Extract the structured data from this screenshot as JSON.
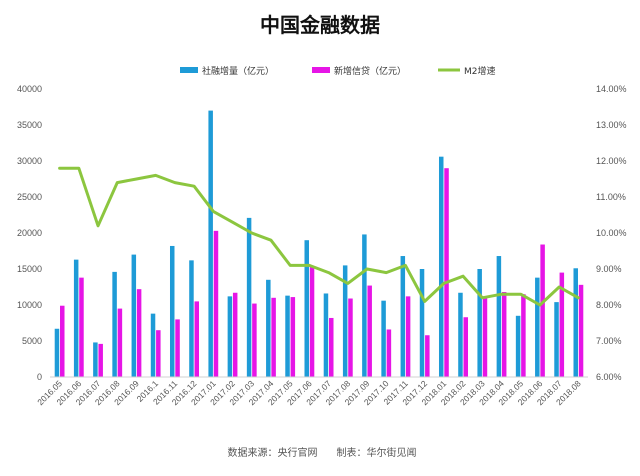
{
  "chart_data": {
    "type": "bar",
    "title": "中国金融数据",
    "source_note": "数据来源：央行官网      制表：华尔街见闻",
    "categories": [
      "2016.05",
      "2016.06",
      "2016.07",
      "2016.08",
      "2016.09",
      "2016.1",
      "2016.11",
      "2016.12",
      "2017.01",
      "2017.02",
      "2017.03",
      "2017.04",
      "2017.05",
      "2017.06",
      "2017.07",
      "2017.08",
      "2017.09",
      "2017.10",
      "2017.11",
      "2017.12",
      "2018.01",
      "2018.02",
      "2018.03",
      "2018.04",
      "2018.05",
      "2018.06",
      "2018.07",
      "2018.08"
    ],
    "y_left": {
      "min": 0,
      "max": 40000,
      "step": 5000,
      "ticks": [
        "0",
        "5000",
        "10000",
        "15000",
        "20000",
        "25000",
        "30000",
        "35000",
        "40000"
      ]
    },
    "y_right": {
      "min": 6,
      "max": 14,
      "step": 1,
      "ticks": [
        "6.00%",
        "7.00%",
        "8.00%",
        "9.00%",
        "10.00%",
        "11.00%",
        "12.00%",
        "13.00%",
        "14.00%"
      ]
    },
    "series": [
      {
        "name": "社融增量（亿元）",
        "kind": "bar",
        "axis": "left",
        "color": "#1e9bd7",
        "values": [
          6700,
          16300,
          4800,
          14600,
          17000,
          8800,
          18200,
          16200,
          37000,
          11200,
          22100,
          13500,
          11300,
          19000,
          11600,
          15500,
          19800,
          10600,
          16800,
          15000,
          30600,
          11700,
          15000,
          16800,
          8500,
          13800,
          10400,
          15100
        ]
      },
      {
        "name": "新增信贷（亿元）",
        "kind": "bar",
        "axis": "left",
        "color": "#e615e6",
        "values": [
          9900,
          13800,
          4600,
          9500,
          12200,
          6500,
          8000,
          10500,
          20300,
          11700,
          10200,
          11000,
          11100,
          15400,
          8200,
          10900,
          12700,
          6600,
          11200,
          5800,
          29000,
          8300,
          11200,
          11800,
          11500,
          18400,
          14500,
          12800
        ]
      },
      {
        "name": "M2增速",
        "kind": "line",
        "axis": "right",
        "color": "#8cc63f",
        "values": [
          11.8,
          11.8,
          10.2,
          11.4,
          11.5,
          11.6,
          11.4,
          11.3,
          10.6,
          10.3,
          10.0,
          9.8,
          9.1,
          9.1,
          8.9,
          8.6,
          9.0,
          8.9,
          9.1,
          8.1,
          8.6,
          8.8,
          8.2,
          8.3,
          8.3,
          8.0,
          8.5,
          8.2
        ]
      }
    ],
    "legend_position": "top",
    "grid": false
  }
}
